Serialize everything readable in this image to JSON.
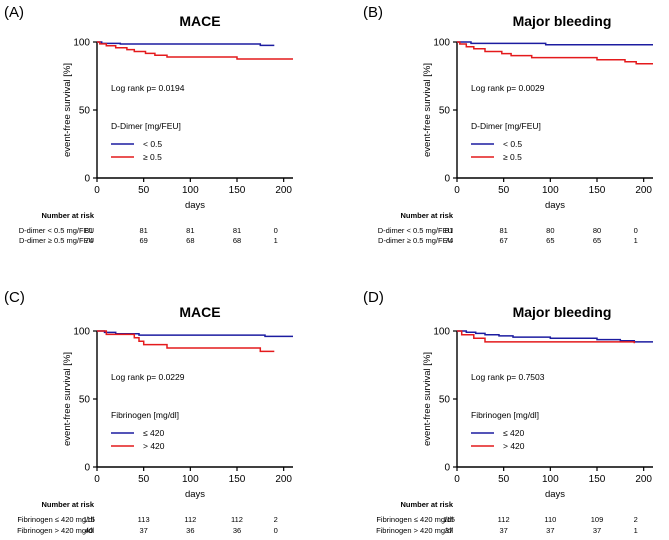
{
  "chart_data": [
    {
      "type": "line",
      "panel_label": "(A)",
      "title": "MACE",
      "xlabel": "days",
      "ylabel": "event-free survival [%]",
      "xlim": [
        0,
        210
      ],
      "ylim": [
        0,
        100
      ],
      "x_ticks": [
        0,
        50,
        100,
        150,
        200
      ],
      "y_ticks": [
        0,
        50,
        100
      ],
      "annotation": "Log rank p= 0.0194",
      "legend_title": "D-Dimer [mg/FEU]",
      "series": [
        {
          "name": "< 0.5",
          "color": "#1c1ca0",
          "points": [
            [
              0,
              100
            ],
            [
              5,
              100
            ],
            [
              5,
              99
            ],
            [
              25,
              99
            ],
            [
              25,
              98.5
            ],
            [
              175,
              98.5
            ],
            [
              175,
              97.5
            ],
            [
              190,
              97.5
            ]
          ]
        },
        {
          "name": "≥ 0.5",
          "color": "#e41a1c",
          "points": [
            [
              0,
              100
            ],
            [
              3,
              100
            ],
            [
              3,
              98.6
            ],
            [
              10,
              98.6
            ],
            [
              10,
              97.2
            ],
            [
              20,
              97.2
            ],
            [
              20,
              95.8
            ],
            [
              32,
              95.8
            ],
            [
              32,
              94.4
            ],
            [
              40,
              94.4
            ],
            [
              40,
              93
            ],
            [
              52,
              93
            ],
            [
              52,
              91.6
            ],
            [
              62,
              91.6
            ],
            [
              62,
              90.2
            ],
            [
              75,
              90.2
            ],
            [
              75,
              89
            ],
            [
              150,
              89
            ],
            [
              150,
              87.5
            ],
            [
              210,
              87.5
            ]
          ]
        }
      ],
      "risk_table": {
        "header": "Number at risk",
        "times": [
          0,
          50,
          100,
          150,
          200
        ],
        "rows": [
          {
            "label": "D-dimer < 0.5 mg/FEU",
            "values": [
              "81",
              "81",
              "81",
              "81",
              "0"
            ]
          },
          {
            "label": "D-dimer ≥ 0.5 mg/FEU",
            "values": [
              "74",
              "69",
              "68",
              "68",
              "1"
            ]
          }
        ]
      }
    },
    {
      "type": "line",
      "panel_label": "(B)",
      "title": "Major bleeding",
      "xlabel": "days",
      "ylabel": "event-free survival [%]",
      "xlim": [
        0,
        210
      ],
      "ylim": [
        0,
        100
      ],
      "x_ticks": [
        0,
        50,
        100,
        150,
        200
      ],
      "y_ticks": [
        0,
        50,
        100
      ],
      "annotation": "Log rank p= 0.0029",
      "legend_title": "D-Dimer [mg/FEU]",
      "series": [
        {
          "name": "< 0.5",
          "color": "#1c1ca0",
          "points": [
            [
              0,
              100
            ],
            [
              15,
              100
            ],
            [
              15,
              99
            ],
            [
              95,
              99
            ],
            [
              95,
              98
            ],
            [
              210,
              98
            ]
          ]
        },
        {
          "name": "≥ 0.5",
          "color": "#e41a1c",
          "points": [
            [
              0,
              100
            ],
            [
              3,
              100
            ],
            [
              3,
              98.5
            ],
            [
              10,
              98.5
            ],
            [
              10,
              96.5
            ],
            [
              18,
              96.5
            ],
            [
              18,
              95
            ],
            [
              30,
              95
            ],
            [
              30,
              93
            ],
            [
              48,
              93
            ],
            [
              48,
              91.5
            ],
            [
              58,
              91.5
            ],
            [
              58,
              90
            ],
            [
              80,
              90
            ],
            [
              80,
              88.5
            ],
            [
              150,
              88.5
            ],
            [
              150,
              87
            ],
            [
              180,
              87
            ],
            [
              180,
              85.5
            ],
            [
              192,
              85.5
            ],
            [
              192,
              84
            ],
            [
              210,
              84
            ]
          ]
        }
      ],
      "risk_table": {
        "header": "Number at risk",
        "times": [
          0,
          50,
          100,
          150,
          200
        ],
        "rows": [
          {
            "label": "D-dimer < 0.5 mg/FEU",
            "values": [
              "81",
              "81",
              "80",
              "80",
              "0"
            ]
          },
          {
            "label": "D-dimer ≥ 0.5 mg/FEU",
            "values": [
              "74",
              "67",
              "65",
              "65",
              "1"
            ]
          }
        ]
      }
    },
    {
      "type": "line",
      "panel_label": "(C)",
      "title": "MACE",
      "xlabel": "days",
      "ylabel": "event-free survival [%]",
      "xlim": [
        0,
        210
      ],
      "ylim": [
        0,
        100
      ],
      "x_ticks": [
        0,
        50,
        100,
        150,
        200
      ],
      "y_ticks": [
        0,
        50,
        100
      ],
      "annotation": "Log rank p= 0.0229",
      "legend_title": "Fibrinogen [mg/dl]",
      "series": [
        {
          "name": "≤ 420",
          "color": "#1c1ca0",
          "points": [
            [
              0,
              100
            ],
            [
              8,
              100
            ],
            [
              8,
              99
            ],
            [
              20,
              99
            ],
            [
              20,
              98
            ],
            [
              45,
              98
            ],
            [
              45,
              97
            ],
            [
              180,
              97
            ],
            [
              180,
              96
            ],
            [
              210,
              96
            ]
          ]
        },
        {
          "name": "> 420",
          "color": "#e41a1c",
          "points": [
            [
              0,
              100
            ],
            [
              10,
              100
            ],
            [
              10,
              97.5
            ],
            [
              40,
              97.5
            ],
            [
              40,
              95
            ],
            [
              45,
              95
            ],
            [
              45,
              92.5
            ],
            [
              50,
              92.5
            ],
            [
              50,
              90
            ],
            [
              75,
              90
            ],
            [
              75,
              87.5
            ],
            [
              175,
              87.5
            ],
            [
              175,
              85
            ],
            [
              190,
              85
            ]
          ]
        }
      ],
      "risk_table": {
        "header": "Number at risk",
        "times": [
          0,
          50,
          100,
          150,
          200
        ],
        "rows": [
          {
            "label": "Fibrinogen ≤ 420 mg/dl",
            "values": [
              "115",
              "113",
              "112",
              "112",
              "2"
            ]
          },
          {
            "label": "Fibrinogen > 420 mg/dl",
            "values": [
              "40",
              "37",
              "36",
              "36",
              "0"
            ]
          }
        ]
      }
    },
    {
      "type": "line",
      "panel_label": "(D)",
      "title": "Major bleeding",
      "xlabel": "days",
      "ylabel": "event-free survival [%]",
      "xlim": [
        0,
        210
      ],
      "ylim": [
        0,
        100
      ],
      "x_ticks": [
        0,
        50,
        100,
        150,
        200
      ],
      "y_ticks": [
        0,
        50,
        100
      ],
      "annotation": "Log rank p= 0.7503",
      "legend_title": "Fibrinogen [mg/dl]",
      "series": [
        {
          "name": "≤ 420",
          "color": "#1c1ca0",
          "points": [
            [
              0,
              100
            ],
            [
              10,
              100
            ],
            [
              10,
              99.1
            ],
            [
              20,
              99.1
            ],
            [
              20,
              98.2
            ],
            [
              30,
              98.2
            ],
            [
              30,
              97.3
            ],
            [
              45,
              97.3
            ],
            [
              45,
              96.4
            ],
            [
              60,
              96.4
            ],
            [
              60,
              95.5
            ],
            [
              100,
              95.5
            ],
            [
              100,
              94.6
            ],
            [
              150,
              94.6
            ],
            [
              150,
              93.7
            ],
            [
              175,
              93.7
            ],
            [
              175,
              92.8
            ],
            [
              190,
              92.8
            ],
            [
              190,
              92
            ],
            [
              210,
              92
            ]
          ]
        },
        {
          "name": "> 420",
          "color": "#e41a1c",
          "points": [
            [
              0,
              100
            ],
            [
              5,
              100
            ],
            [
              5,
              97.3
            ],
            [
              18,
              97.3
            ],
            [
              18,
              94.6
            ],
            [
              30,
              94.6
            ],
            [
              30,
              92
            ],
            [
              190,
              92
            ],
            [
              190,
              91
            ]
          ]
        }
      ],
      "risk_table": {
        "header": "Number at risk",
        "times": [
          0,
          50,
          100,
          150,
          200
        ],
        "rows": [
          {
            "label": "Fibrinogen ≤ 420 mg/dl",
            "values": [
              "115",
              "112",
              "110",
              "109",
              "2"
            ]
          },
          {
            "label": "Fibrinogen > 420 mg/dl",
            "values": [
              "37",
              "37",
              "37",
              "37",
              "1"
            ]
          }
        ]
      }
    }
  ]
}
